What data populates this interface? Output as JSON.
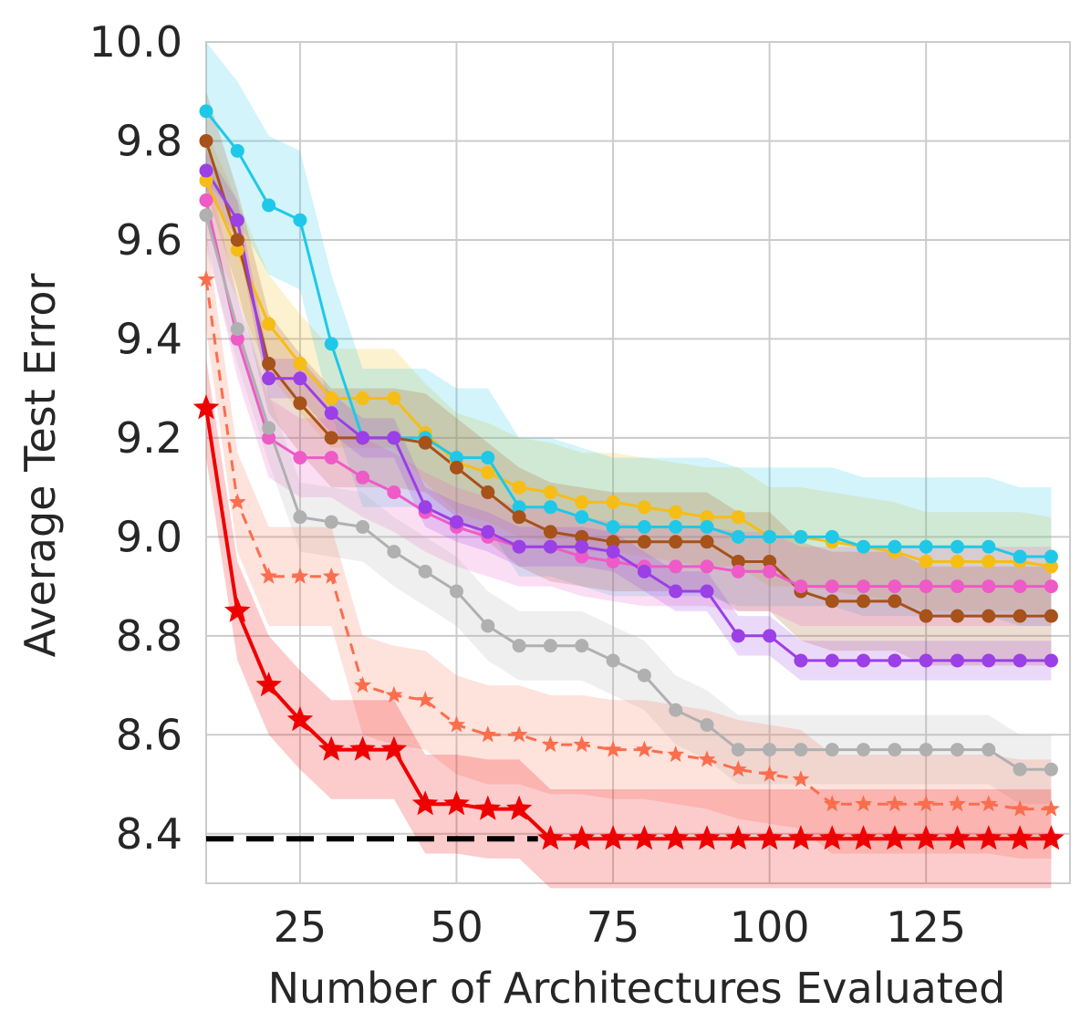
{
  "chart_data": {
    "type": "line",
    "title": "",
    "xlabel": "Number of Architectures Evaluated",
    "ylabel": "Average Test Error",
    "xlim": [
      10,
      148
    ],
    "ylim": [
      8.3,
      10.0
    ],
    "xticks": [
      25,
      50,
      75,
      100,
      125
    ],
    "xtick_labels": [
      "25",
      "50",
      "75",
      "100",
      "125"
    ],
    "yticks": [
      8.4,
      8.6,
      8.8,
      9.0,
      9.2,
      9.4,
      9.6,
      9.8,
      10.0
    ],
    "ytick_labels": [
      "8.4",
      "8.6",
      "8.8",
      "9.0",
      "9.2",
      "9.4",
      "9.6",
      "9.8",
      "10.0"
    ],
    "grid": true,
    "x": [
      10,
      15,
      20,
      25,
      30,
      35,
      40,
      45,
      50,
      55,
      60,
      65,
      70,
      75,
      80,
      85,
      90,
      95,
      100,
      105,
      110,
      115,
      120,
      125,
      130,
      135,
      140,
      145
    ],
    "reference_line": {
      "y": 8.39,
      "x_range": [
        10,
        63
      ],
      "color": "#000000",
      "style": "dashed"
    },
    "series": [
      {
        "name": "yellow",
        "color": "#f6bd16",
        "marker": "circle",
        "style": "solid",
        "bandwidth": 0.1,
        "values": [
          9.72,
          9.58,
          9.43,
          9.35,
          9.28,
          9.28,
          9.28,
          9.21,
          9.15,
          9.13,
          9.1,
          9.09,
          9.07,
          9.07,
          9.06,
          9.05,
          9.04,
          9.04,
          9.0,
          9.0,
          8.99,
          8.98,
          8.97,
          8.95,
          8.95,
          8.95,
          8.95,
          8.94
        ]
      },
      {
        "name": "cyan",
        "color": "#1fc8e8",
        "marker": "circle",
        "style": "solid",
        "bandwidth": 0.14,
        "values": [
          9.86,
          9.78,
          9.67,
          9.64,
          9.39,
          9.2,
          9.2,
          9.2,
          9.16,
          9.16,
          9.06,
          9.06,
          9.04,
          9.02,
          9.02,
          9.02,
          9.02,
          9.0,
          9.0,
          9.0,
          9.0,
          8.98,
          8.98,
          8.98,
          8.98,
          8.98,
          8.96,
          8.96
        ]
      },
      {
        "name": "brown",
        "color": "#a6521a",
        "marker": "circle",
        "style": "solid",
        "bandwidth": 0.1,
        "values": [
          9.8,
          9.6,
          9.35,
          9.27,
          9.2,
          9.2,
          9.2,
          9.19,
          9.14,
          9.09,
          9.04,
          9.01,
          9.0,
          8.99,
          8.99,
          8.99,
          8.99,
          8.95,
          8.95,
          8.89,
          8.87,
          8.87,
          8.87,
          8.84,
          8.84,
          8.84,
          8.84,
          8.84
        ]
      },
      {
        "name": "magenta",
        "color": "#ee5bc7",
        "marker": "circle",
        "style": "solid",
        "bandwidth": 0.08,
        "values": [
          9.68,
          9.4,
          9.2,
          9.16,
          9.16,
          9.12,
          9.09,
          9.05,
          9.02,
          9.0,
          8.98,
          8.98,
          8.96,
          8.95,
          8.94,
          8.94,
          8.94,
          8.93,
          8.93,
          8.9,
          8.9,
          8.9,
          8.9,
          8.9,
          8.9,
          8.9,
          8.9,
          8.9
        ]
      },
      {
        "name": "purple",
        "color": "#9b3fe6",
        "marker": "circle",
        "style": "solid",
        "bandwidth": 0.04,
        "values": [
          9.74,
          9.64,
          9.32,
          9.32,
          9.25,
          9.2,
          9.2,
          9.06,
          9.03,
          9.01,
          8.98,
          8.98,
          8.98,
          8.97,
          8.93,
          8.89,
          8.89,
          8.8,
          8.8,
          8.75,
          8.75,
          8.75,
          8.75,
          8.75,
          8.75,
          8.75,
          8.75,
          8.75
        ]
      },
      {
        "name": "gray",
        "color": "#b0b0b0",
        "marker": "circle",
        "style": "solid",
        "bandwidth": 0.07,
        "values": [
          9.65,
          9.42,
          9.22,
          9.04,
          9.03,
          9.02,
          8.97,
          8.93,
          8.89,
          8.82,
          8.78,
          8.78,
          8.78,
          8.75,
          8.72,
          8.65,
          8.62,
          8.57,
          8.57,
          8.57,
          8.57,
          8.57,
          8.57,
          8.57,
          8.57,
          8.57,
          8.53,
          8.53
        ]
      },
      {
        "name": "coral-dashed",
        "color": "#fa6e4e",
        "marker": "star",
        "style": "dashed",
        "bandwidth": 0.1,
        "values": [
          9.52,
          9.07,
          8.92,
          8.92,
          8.92,
          8.7,
          8.68,
          8.67,
          8.62,
          8.6,
          8.6,
          8.58,
          8.58,
          8.57,
          8.57,
          8.56,
          8.55,
          8.53,
          8.52,
          8.51,
          8.46,
          8.46,
          8.46,
          8.46,
          8.46,
          8.46,
          8.45,
          8.45
        ]
      },
      {
        "name": "red",
        "color": "#ee0000",
        "marker": "star",
        "style": "solid",
        "bandwidth": 0.1,
        "values": [
          9.26,
          8.85,
          8.7,
          8.63,
          8.57,
          8.57,
          8.57,
          8.46,
          8.46,
          8.45,
          8.45,
          8.39,
          8.39,
          8.39,
          8.39,
          8.39,
          8.39,
          8.39,
          8.39,
          8.39,
          8.39,
          8.39,
          8.39,
          8.39,
          8.39,
          8.39,
          8.39,
          8.39
        ]
      }
    ]
  }
}
